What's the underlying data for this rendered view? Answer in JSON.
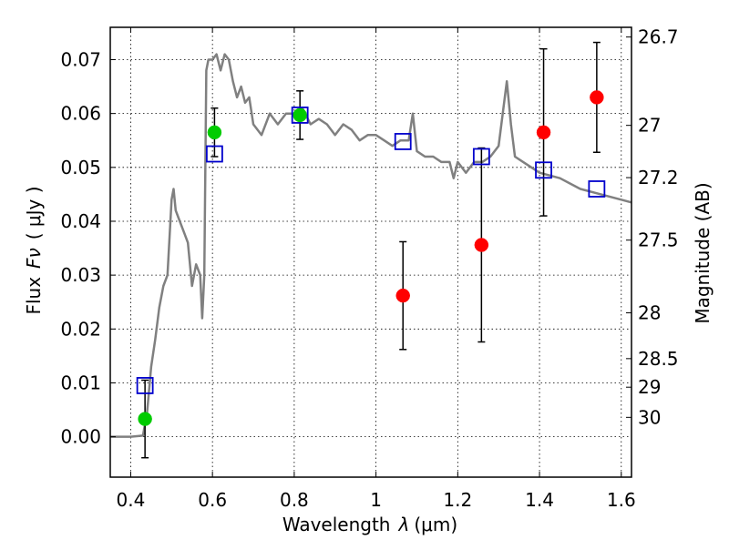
{
  "chart_data": {
    "type": "scatter",
    "xlabel_text": "Wavelength",
    "xlabel_symbol": "λ",
    "xlabel_unit": "(μm)",
    "ylabel_text": "Flux",
    "ylabel_symbol": "Fν",
    "ylabel_unit": "( μJy )",
    "y2label": "Magnitude (AB)",
    "xlim": [
      0.35,
      1.625
    ],
    "ylim": [
      -0.0075,
      0.076
    ],
    "grid": true,
    "xticks": [
      0.4,
      0.6,
      0.8,
      1.0,
      1.2,
      1.4,
      1.6
    ],
    "xtick_labels": [
      "0.4",
      "0.6",
      "0.8",
      "1",
      "1.2",
      "1.4",
      "1.6"
    ],
    "yticks": [
      0.0,
      0.01,
      0.02,
      0.03,
      0.04,
      0.05,
      0.06,
      0.07
    ],
    "ytick_labels": [
      "0.00",
      "0.01",
      "0.02",
      "0.03",
      "0.04",
      "0.05",
      "0.06",
      "0.07"
    ],
    "y2ticks": [
      {
        "label": "26.7",
        "flux": 0.0742
      },
      {
        "label": "27",
        "flux": 0.0578
      },
      {
        "label": "27.2",
        "flux": 0.0481
      },
      {
        "label": "27.5",
        "flux": 0.0365
      },
      {
        "label": "28",
        "flux": 0.023
      },
      {
        "label": "28.5",
        "flux": 0.0145
      },
      {
        "label": "29",
        "flux": 0.0092
      },
      {
        "label": "30",
        "flux": 0.0036
      }
    ],
    "sed_model": {
      "color": "#808080",
      "x": [
        0.35,
        0.4,
        0.43,
        0.44,
        0.45,
        0.46,
        0.47,
        0.48,
        0.49,
        0.5,
        0.505,
        0.51,
        0.52,
        0.53,
        0.54,
        0.55,
        0.56,
        0.57,
        0.575,
        0.58,
        0.585,
        0.59,
        0.6,
        0.61,
        0.62,
        0.63,
        0.64,
        0.65,
        0.66,
        0.67,
        0.68,
        0.69,
        0.7,
        0.72,
        0.74,
        0.76,
        0.78,
        0.8,
        0.82,
        0.84,
        0.86,
        0.88,
        0.9,
        0.92,
        0.94,
        0.96,
        0.98,
        1.0,
        1.02,
        1.04,
        1.06,
        1.08,
        1.09,
        1.1,
        1.12,
        1.14,
        1.16,
        1.18,
        1.19,
        1.2,
        1.22,
        1.24,
        1.26,
        1.28,
        1.3,
        1.32,
        1.33,
        1.34,
        1.36,
        1.38,
        1.4,
        1.45,
        1.5,
        1.55,
        1.6,
        1.625
      ],
      "y": [
        0.0,
        0.0,
        0.0002,
        0.0045,
        0.013,
        0.018,
        0.024,
        0.028,
        0.03,
        0.044,
        0.046,
        0.042,
        0.04,
        0.038,
        0.036,
        0.028,
        0.032,
        0.03,
        0.022,
        0.03,
        0.068,
        0.07,
        0.07,
        0.071,
        0.068,
        0.071,
        0.07,
        0.066,
        0.063,
        0.065,
        0.062,
        0.063,
        0.058,
        0.056,
        0.06,
        0.058,
        0.06,
        0.06,
        0.061,
        0.058,
        0.059,
        0.058,
        0.056,
        0.058,
        0.057,
        0.055,
        0.056,
        0.056,
        0.055,
        0.054,
        0.055,
        0.055,
        0.06,
        0.053,
        0.052,
        0.052,
        0.051,
        0.051,
        0.048,
        0.051,
        0.049,
        0.051,
        0.051,
        0.052,
        0.054,
        0.066,
        0.058,
        0.052,
        0.051,
        0.05,
        0.049,
        0.048,
        0.046,
        0.045,
        0.044,
        0.0435
      ]
    },
    "series": [
      {
        "marker": "filled-circle",
        "color": "#00cc00",
        "points": [
          {
            "x": 0.435,
            "y": 0.0033,
            "err": 0.0072
          },
          {
            "x": 0.605,
            "y": 0.0565,
            "err": 0.0045
          },
          {
            "x": 0.814,
            "y": 0.0597,
            "err": 0.0045
          }
        ]
      },
      {
        "marker": "filled-circle",
        "color": "#ff0000",
        "points": [
          {
            "x": 1.066,
            "y": 0.0262,
            "err": 0.01
          },
          {
            "x": 1.258,
            "y": 0.0356,
            "err": 0.018
          },
          {
            "x": 1.41,
            "y": 0.0565,
            "err": 0.0155
          },
          {
            "x": 1.54,
            "y": 0.063,
            "err": 0.0102
          }
        ]
      },
      {
        "marker": "open-square",
        "color": "#0000cc",
        "points": [
          {
            "x": 0.435,
            "y": 0.0095
          },
          {
            "x": 0.605,
            "y": 0.0525
          },
          {
            "x": 0.814,
            "y": 0.0597
          },
          {
            "x": 1.066,
            "y": 0.0548
          },
          {
            "x": 1.258,
            "y": 0.052
          },
          {
            "x": 1.41,
            "y": 0.0495
          },
          {
            "x": 1.54,
            "y": 0.046
          }
        ]
      }
    ]
  }
}
